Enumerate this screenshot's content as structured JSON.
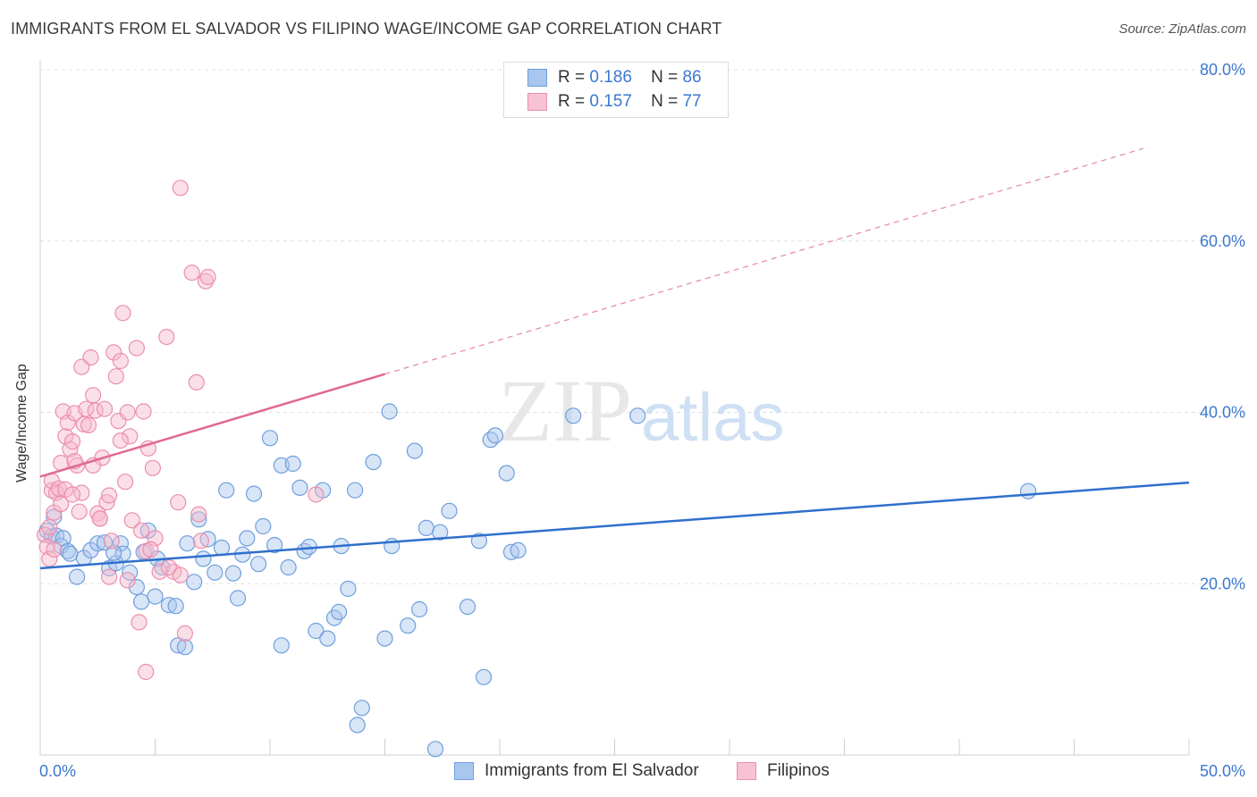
{
  "title": "IMMIGRANTS FROM EL SALVADOR VS FILIPINO WAGE/INCOME GAP CORRELATION CHART",
  "source": "Source: ZipAtlas.com",
  "watermark": {
    "zip": "ZIP",
    "atlas": "atlas"
  },
  "legend": {
    "r_label": "R =",
    "n_label": "N =",
    "rows": [
      {
        "r": "0.186",
        "n": "86"
      },
      {
        "r": "0.157",
        "n": "77"
      }
    ]
  },
  "colors": {
    "blue_fill": "#a9c6ee",
    "blue_stroke": "#6f9fdd",
    "blue_line": "#2f6fcc",
    "pink_fill": "#f7b8cc",
    "pink_stroke": "#ea8fae",
    "pink_line": "#e0688f",
    "axis_text": "#3b78d0",
    "grid": "#e0e0e0"
  },
  "chart_data": {
    "type": "scatter",
    "title": "IMMIGRANTS FROM EL SALVADOR VS FILIPINO WAGE/INCOME GAP CORRELATION CHART",
    "xlabel": "",
    "ylabel": "Wage/Income Gap",
    "xlim": [
      0,
      50
    ],
    "ylim": [
      0,
      80
    ],
    "x_tick_labels": [
      "0.0%",
      "50.0%"
    ],
    "y_ticks": [
      20,
      40,
      60,
      80
    ],
    "y_tick_labels": [
      "20.0%",
      "40.0%",
      "60.0%",
      "80.0%"
    ],
    "series": [
      {
        "name": "Immigrants from El Salvador",
        "color": "blue",
        "trend": {
          "x_start": 0,
          "y_start": 21.8,
          "x_end": 50,
          "y_end": 31.8,
          "dashed_from": null
        },
        "points": [
          [
            0.3,
            26.2
          ],
          [
            0.5,
            25.5
          ],
          [
            0.6,
            27.8
          ],
          [
            0.7,
            25.6
          ],
          [
            0.9,
            24.4
          ],
          [
            1.0,
            25.3
          ],
          [
            1.2,
            23.8
          ],
          [
            1.3,
            23.5
          ],
          [
            1.6,
            20.8
          ],
          [
            1.9,
            23.0
          ],
          [
            2.2,
            23.9
          ],
          [
            2.5,
            24.7
          ],
          [
            2.8,
            24.8
          ],
          [
            3.0,
            21.8
          ],
          [
            3.3,
            22.4
          ],
          [
            3.5,
            24.7
          ],
          [
            3.6,
            23.5
          ],
          [
            3.9,
            21.3
          ],
          [
            4.2,
            19.6
          ],
          [
            4.4,
            17.9
          ],
          [
            4.5,
            23.7
          ],
          [
            4.7,
            26.2
          ],
          [
            5.0,
            18.5
          ],
          [
            5.1,
            22.9
          ],
          [
            5.3,
            21.9
          ],
          [
            5.6,
            17.5
          ],
          [
            5.9,
            17.4
          ],
          [
            6.0,
            12.8
          ],
          [
            6.3,
            12.6
          ],
          [
            6.4,
            24.7
          ],
          [
            6.7,
            20.2
          ],
          [
            6.9,
            27.5
          ],
          [
            7.1,
            22.9
          ],
          [
            7.3,
            25.2
          ],
          [
            7.6,
            21.3
          ],
          [
            7.9,
            24.2
          ],
          [
            8.1,
            30.9
          ],
          [
            8.4,
            21.2
          ],
          [
            8.6,
            18.3
          ],
          [
            8.8,
            23.4
          ],
          [
            9.0,
            25.3
          ],
          [
            9.3,
            30.5
          ],
          [
            9.5,
            22.3
          ],
          [
            9.7,
            26.7
          ],
          [
            10.0,
            37.0
          ],
          [
            10.2,
            24.5
          ],
          [
            10.5,
            33.8
          ],
          [
            10.5,
            12.8
          ],
          [
            10.8,
            21.9
          ],
          [
            11.0,
            34.0
          ],
          [
            11.3,
            31.2
          ],
          [
            11.5,
            23.8
          ],
          [
            11.7,
            24.3
          ],
          [
            12.0,
            14.5
          ],
          [
            12.3,
            30.9
          ],
          [
            12.5,
            13.6
          ],
          [
            12.8,
            16.0
          ],
          [
            13.0,
            16.7
          ],
          [
            13.1,
            24.4
          ],
          [
            13.4,
            19.4
          ],
          [
            13.7,
            30.9
          ],
          [
            14.0,
            5.5
          ],
          [
            14.5,
            34.2
          ],
          [
            15.0,
            13.6
          ],
          [
            15.2,
            40.1
          ],
          [
            15.3,
            24.4
          ],
          [
            16.0,
            15.1
          ],
          [
            16.3,
            35.5
          ],
          [
            16.5,
            17.0
          ],
          [
            16.8,
            26.5
          ],
          [
            17.2,
            0.7
          ],
          [
            17.4,
            26.0
          ],
          [
            17.8,
            28.5
          ],
          [
            18.6,
            17.3
          ],
          [
            19.1,
            25.0
          ],
          [
            19.3,
            9.1
          ],
          [
            19.6,
            36.8
          ],
          [
            19.8,
            37.3
          ],
          [
            20.3,
            32.9
          ],
          [
            20.5,
            23.7
          ],
          [
            20.8,
            23.9
          ],
          [
            23.2,
            39.6
          ],
          [
            26.0,
            39.6
          ],
          [
            43.0,
            30.8
          ],
          [
            13.8,
            3.5
          ],
          [
            3.2,
            23.6
          ]
        ]
      },
      {
        "name": "Filipinos",
        "color": "pink",
        "trend": {
          "x_start": 0,
          "y_start": 32.5,
          "x_end": 48,
          "y_end": 70.8,
          "dashed_from": 15
        },
        "points": [
          [
            0.2,
            25.7
          ],
          [
            0.3,
            24.3
          ],
          [
            0.4,
            22.9
          ],
          [
            0.4,
            26.6
          ],
          [
            0.5,
            30.9
          ],
          [
            0.5,
            32.0
          ],
          [
            0.6,
            28.3
          ],
          [
            0.7,
            30.6
          ],
          [
            0.8,
            31.1
          ],
          [
            0.9,
            34.1
          ],
          [
            0.9,
            29.3
          ],
          [
            1.0,
            40.1
          ],
          [
            1.1,
            37.2
          ],
          [
            1.2,
            38.8
          ],
          [
            1.3,
            35.7
          ],
          [
            1.4,
            36.6
          ],
          [
            1.5,
            39.9
          ],
          [
            1.6,
            33.8
          ],
          [
            1.7,
            28.4
          ],
          [
            1.8,
            45.3
          ],
          [
            1.8,
            30.6
          ],
          [
            1.9,
            38.6
          ],
          [
            2.0,
            40.4
          ],
          [
            2.1,
            38.5
          ],
          [
            2.2,
            46.4
          ],
          [
            2.3,
            42.0
          ],
          [
            2.4,
            40.2
          ],
          [
            2.5,
            28.2
          ],
          [
            2.6,
            27.6
          ],
          [
            2.7,
            34.7
          ],
          [
            2.8,
            40.4
          ],
          [
            2.9,
            29.5
          ],
          [
            3.0,
            30.3
          ],
          [
            3.1,
            25.0
          ],
          [
            3.2,
            47.0
          ],
          [
            3.3,
            44.2
          ],
          [
            3.4,
            39.0
          ],
          [
            3.5,
            46.0
          ],
          [
            3.6,
            51.6
          ],
          [
            3.7,
            31.9
          ],
          [
            3.8,
            40.0
          ],
          [
            3.9,
            37.2
          ],
          [
            4.0,
            27.4
          ],
          [
            4.2,
            47.5
          ],
          [
            4.4,
            26.2
          ],
          [
            4.5,
            40.1
          ],
          [
            4.6,
            23.8
          ],
          [
            4.7,
            35.8
          ],
          [
            4.9,
            33.5
          ],
          [
            5.0,
            25.3
          ],
          [
            5.5,
            48.8
          ],
          [
            5.8,
            21.4
          ],
          [
            6.0,
            29.5
          ],
          [
            6.1,
            66.2
          ],
          [
            6.3,
            14.2
          ],
          [
            6.6,
            56.3
          ],
          [
            6.8,
            43.5
          ],
          [
            6.9,
            28.1
          ],
          [
            7.0,
            25.0
          ],
          [
            7.2,
            55.3
          ],
          [
            7.3,
            55.8
          ],
          [
            1.5,
            34.3
          ],
          [
            3.8,
            20.4
          ],
          [
            4.3,
            15.5
          ],
          [
            4.6,
            9.7
          ],
          [
            5.2,
            21.4
          ],
          [
            5.6,
            21.9
          ],
          [
            12.0,
            30.4
          ],
          [
            2.6,
            27.6
          ],
          [
            3.0,
            20.8
          ],
          [
            0.6,
            24.0
          ],
          [
            1.1,
            31.0
          ],
          [
            1.4,
            30.4
          ],
          [
            2.3,
            33.8
          ],
          [
            3.5,
            36.7
          ],
          [
            4.8,
            24.0
          ],
          [
            6.1,
            21.0
          ]
        ]
      }
    ]
  }
}
